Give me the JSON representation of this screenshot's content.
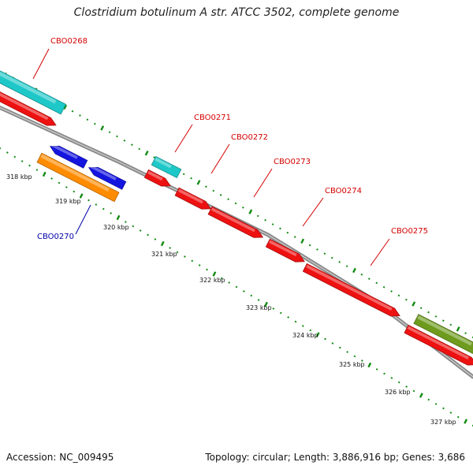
{
  "title": "Clostridium botulinum A str. ATCC 3502, complete genome",
  "footer": {
    "accession": "Accession: NC_009495",
    "topology": "Topology: circular; Length: 3,886,916 bp; Genes: 3,686"
  },
  "colors": {
    "backbone": "#8a8a8a",
    "tick_dots": "#138a13",
    "label_red": "#d40000",
    "label_blue": "#0000aa"
  },
  "scale_labels": [
    "318 kbp",
    "319 kbp",
    "320 kbp",
    "321 kbp",
    "322 kbp",
    "323 kbp",
    "324 kbp",
    "325 kbp",
    "326 kbp",
    "327 kbp"
  ],
  "genes": [
    {
      "label": "CBO0268",
      "track": "cyan",
      "color": "#1ec8c8"
    },
    {
      "label": "CBO0268",
      "track": "forward",
      "color": "#ee1111"
    },
    {
      "label": "",
      "track": "reverse",
      "color": "#1515e0"
    },
    {
      "label": "",
      "track": "reverse",
      "color": "#1515e0"
    },
    {
      "label": "CBO0270",
      "track": "orange",
      "color": "#ff8c00"
    },
    {
      "label": "CBO0271",
      "track": "cyan",
      "color": "#1ec8c8"
    },
    {
      "label": "",
      "track": "forward",
      "color": "#ee1111"
    },
    {
      "label": "CBO0272",
      "track": "forward",
      "color": "#ee1111"
    },
    {
      "label": "CBO0273",
      "track": "forward",
      "color": "#ee1111"
    },
    {
      "label": "CBO0274",
      "track": "forward",
      "color": "#ee1111"
    },
    {
      "label": "CBO0275",
      "track": "forward",
      "color": "#ee1111"
    },
    {
      "label": "",
      "track": "olive",
      "color": "#6e9b1e"
    },
    {
      "label": "",
      "track": "forward",
      "color": "#ee1111"
    }
  ],
  "gene_labels": [
    {
      "text": "CBO0268",
      "color": "#d40000"
    },
    {
      "text": "CBO0271",
      "color": "#d40000"
    },
    {
      "text": "CBO0272",
      "color": "#d40000"
    },
    {
      "text": "CBO0273",
      "color": "#d40000"
    },
    {
      "text": "CBO0274",
      "color": "#d40000"
    },
    {
      "text": "CBO0275",
      "color": "#d40000"
    },
    {
      "text": "CBO0270",
      "color": "#0000aa"
    }
  ]
}
